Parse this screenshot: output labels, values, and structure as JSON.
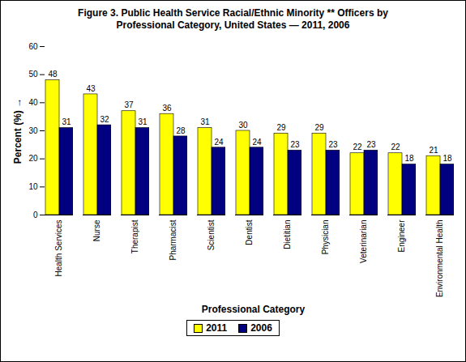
{
  "chart_data": {
    "type": "bar",
    "title": "Figure 3. Public Health Service Racial/Ethnic Minority ** Officers by Professional Category, United States — 2011, 2006",
    "xlabel": "Professional Category",
    "ylabel": "Percent (%)",
    "categories": [
      "Health Services",
      "Nurse",
      "Therapist",
      "Pharmacist",
      "Scientist",
      "Dentist",
      "Dietitian",
      "Physician",
      "Veterinarian",
      "Engineer",
      "Environmental Health"
    ],
    "series": [
      {
        "name": "2011",
        "color": "#ffff00",
        "values": [
          48,
          43,
          37,
          36,
          31,
          30,
          29,
          29,
          22,
          22,
          21
        ]
      },
      {
        "name": "2006",
        "color": "#000080",
        "values": [
          31,
          32,
          31,
          28,
          24,
          24,
          23,
          23,
          23,
          18,
          18
        ]
      }
    ],
    "ylim": [
      0,
      60
    ],
    "yticks": [
      0,
      10,
      20,
      30,
      40,
      50,
      60
    ],
    "data_labels": true,
    "legend": "bottom",
    "grid": false
  }
}
